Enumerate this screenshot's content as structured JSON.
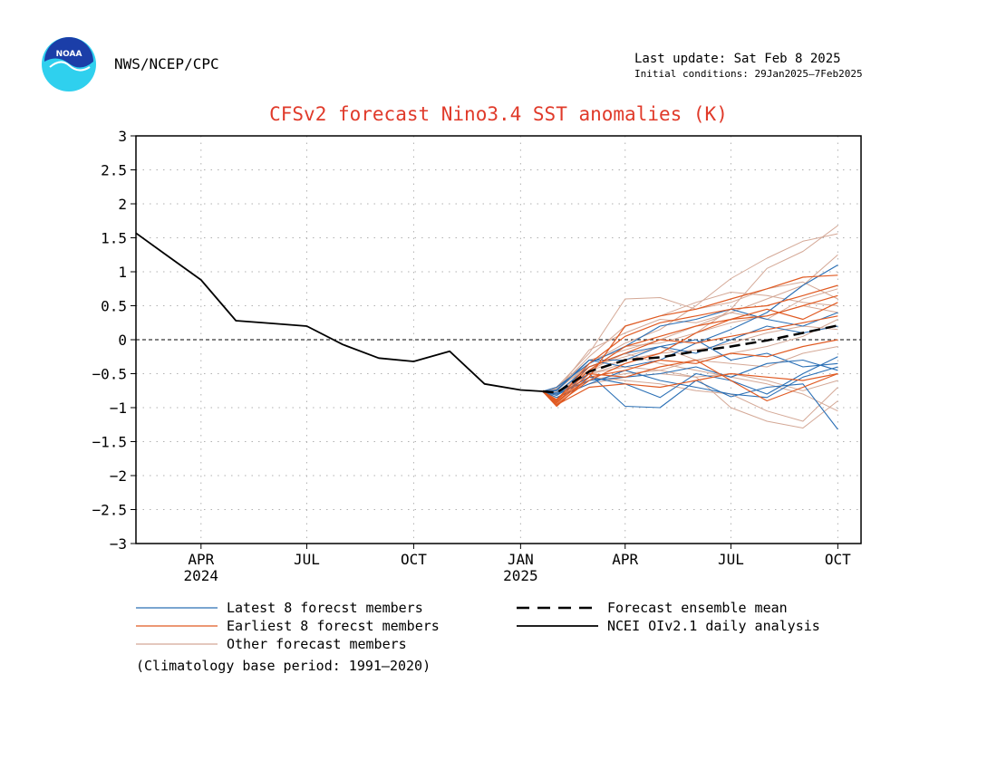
{
  "header": {
    "agency": "NWS/NCEP/CPC",
    "last_update": "Last update: Sat Feb  8 2025",
    "initial_conditions": "Initial conditions: 29Jan2025–7Feb2025",
    "logo_text": "NOAA"
  },
  "footer": {
    "climatology": "(Climatology base period: 1991–2020)"
  },
  "colors": {
    "title": "#e03a2a",
    "latest": "#2a6fb5",
    "earliest": "#e05a22",
    "other": "#d4a896",
    "mean": "#000000",
    "observed": "#000000",
    "logo_blue": "#1b3ea8",
    "logo_cyan": "#2fd0ee"
  },
  "chart_data": {
    "type": "line",
    "title": "CFSv2 forecast Nino3.4 SST anomalies (K)",
    "xlabel": "",
    "ylabel": "",
    "ylim": [
      -3,
      3
    ],
    "yticks": [
      3,
      2.5,
      2,
      1.5,
      1,
      0.5,
      0,
      -0.5,
      -1,
      -1.5,
      -2,
      -2.5,
      -3
    ],
    "ytick_labels": [
      "3",
      "2.5",
      "2",
      "1.5",
      "1",
      "0.5",
      "0",
      "−0.5",
      "−1",
      "−1.5",
      "−2",
      "−2.5",
      "−3"
    ],
    "xlim": [
      "2024-02-05",
      "2025-10-21"
    ],
    "xticks": [
      {
        "date": "2024-04-01",
        "label": "APR",
        "year": "2024"
      },
      {
        "date": "2024-07-01",
        "label": "JUL",
        "year": ""
      },
      {
        "date": "2024-10-01",
        "label": "OCT",
        "year": ""
      },
      {
        "date": "2025-01-01",
        "label": "JAN",
        "year": "2025"
      },
      {
        "date": "2025-04-01",
        "label": "APR",
        "year": ""
      },
      {
        "date": "2025-07-01",
        "label": "JUL",
        "year": ""
      },
      {
        "date": "2025-10-01",
        "label": "OCT",
        "year": ""
      }
    ],
    "grid": true,
    "zero_line": true,
    "legend": [
      {
        "label": "Latest 8 forecst members",
        "style": "latest"
      },
      {
        "label": "Earliest 8 forecst members",
        "style": "earliest"
      },
      {
        "label": "Other forecast members",
        "style": "other"
      },
      {
        "label": "Forecast ensemble mean",
        "style": "mean"
      },
      {
        "label": "NCEI OIv2.1 daily analysis",
        "style": "observed"
      }
    ],
    "forecast_dates": [
      "2025-01-20",
      "2025-02-01",
      "2025-03-01",
      "2025-04-01",
      "2025-05-01",
      "2025-06-01",
      "2025-07-01",
      "2025-08-01",
      "2025-09-01",
      "2025-10-01"
    ],
    "series": [
      {
        "name": "NCEI OIv2.1 daily analysis",
        "style": "observed",
        "x": [
          "2024-02-05",
          "2024-03-01",
          "2024-04-01",
          "2024-05-01",
          "2024-06-01",
          "2024-07-01",
          "2024-08-01",
          "2024-09-01",
          "2024-10-01",
          "2024-11-01",
          "2024-12-01",
          "2025-01-01",
          "2025-01-20"
        ],
        "y": [
          1.57,
          1.26,
          0.88,
          0.28,
          0.24,
          0.2,
          -0.07,
          -0.27,
          -0.32,
          -0.17,
          -0.65,
          -0.74,
          -0.76
        ]
      },
      {
        "name": "Forecast ensemble mean",
        "style": "mean",
        "y": [
          -0.76,
          -0.78,
          -0.47,
          -0.3,
          -0.26,
          -0.17,
          -0.1,
          -0.01,
          0.1,
          0.21
        ]
      },
      {
        "style": "other",
        "y": [
          -0.76,
          -0.7,
          -0.2,
          0.6,
          0.62,
          0.45,
          0.55,
          0.75,
          0.85,
          0.6
        ]
      },
      {
        "style": "other",
        "y": [
          -0.76,
          -0.75,
          -0.35,
          -0.05,
          0.15,
          0.5,
          0.9,
          1.2,
          1.45,
          1.56
        ]
      },
      {
        "style": "other",
        "y": [
          -0.76,
          -0.8,
          -0.5,
          -0.35,
          -0.2,
          0.1,
          0.45,
          1.05,
          1.3,
          1.68
        ]
      },
      {
        "style": "other",
        "y": [
          -0.76,
          -0.8,
          -0.55,
          -0.6,
          -0.65,
          -0.75,
          -0.8,
          -1.05,
          -1.2,
          -0.7
        ]
      },
      {
        "style": "other",
        "y": [
          -0.76,
          -0.85,
          -0.6,
          -0.5,
          -0.45,
          -0.55,
          -1.0,
          -1.2,
          -1.3,
          -0.9
        ]
      },
      {
        "style": "other",
        "y": [
          -0.76,
          -0.7,
          -0.3,
          -0.15,
          0.0,
          0.2,
          0.4,
          0.6,
          0.8,
          1.25
        ]
      },
      {
        "style": "other",
        "y": [
          -0.76,
          -0.72,
          -0.4,
          -0.25,
          -0.1,
          -0.3,
          -0.2,
          -0.1,
          0.05,
          0.3
        ]
      },
      {
        "style": "other",
        "y": [
          -0.76,
          -0.8,
          -0.45,
          -0.2,
          -0.35,
          -0.45,
          -0.55,
          -0.65,
          -0.8,
          -1.05
        ]
      },
      {
        "style": "other",
        "y": [
          -0.76,
          -0.75,
          -0.15,
          0.1,
          0.3,
          0.25,
          0.4,
          0.3,
          0.6,
          0.75
        ]
      },
      {
        "style": "other",
        "y": [
          -0.76,
          -0.78,
          -0.5,
          -0.4,
          -0.45,
          -0.3,
          -0.35,
          -0.4,
          -0.2,
          -0.1
        ]
      },
      {
        "style": "other",
        "y": [
          -0.76,
          -0.82,
          -0.35,
          -0.1,
          -0.05,
          0.1,
          0.25,
          0.35,
          0.5,
          0.4
        ]
      },
      {
        "style": "other",
        "y": [
          -0.76,
          -0.85,
          -0.65,
          -0.55,
          -0.5,
          -0.55,
          -0.5,
          -0.6,
          -0.75,
          -0.6
        ]
      },
      {
        "style": "other",
        "y": [
          -0.76,
          -0.73,
          -0.25,
          0.2,
          0.35,
          0.55,
          0.7,
          0.65,
          0.55,
          0.5
        ]
      },
      {
        "style": "other",
        "y": [
          -0.76,
          -0.77,
          -0.45,
          -0.3,
          -0.2,
          -0.15,
          -0.05,
          0.1,
          0.2,
          0.15
        ]
      },
      {
        "style": "latest",
        "y": [
          -0.76,
          -0.8,
          -0.5,
          -0.98,
          -1.0,
          -0.6,
          -0.84,
          -0.7,
          -0.65,
          -1.32
        ]
      },
      {
        "style": "latest",
        "y": [
          -0.76,
          -0.75,
          -0.3,
          -0.4,
          -0.3,
          -0.05,
          0.15,
          0.4,
          0.8,
          1.1
        ]
      },
      {
        "style": "latest",
        "y": [
          -0.76,
          -0.78,
          -0.4,
          -0.2,
          -0.1,
          0.0,
          -0.3,
          -0.2,
          -0.4,
          -0.35
        ]
      },
      {
        "style": "latest",
        "y": [
          -0.76,
          -0.82,
          -0.55,
          -0.65,
          -0.85,
          -0.5,
          -0.6,
          -0.8,
          -0.5,
          -0.25
        ]
      },
      {
        "style": "latest",
        "y": [
          -0.76,
          -0.7,
          -0.35,
          -0.1,
          0.2,
          0.3,
          0.45,
          0.3,
          0.2,
          0.4
        ]
      },
      {
        "style": "latest",
        "y": [
          -0.76,
          -0.8,
          -0.6,
          -0.55,
          -0.5,
          -0.4,
          -0.55,
          -0.35,
          -0.3,
          -0.45
        ]
      },
      {
        "style": "latest",
        "y": [
          -0.76,
          -0.74,
          -0.3,
          -0.3,
          -0.1,
          -0.2,
          0.0,
          0.2,
          0.1,
          0.2
        ]
      },
      {
        "style": "latest",
        "y": [
          -0.76,
          -0.85,
          -0.65,
          -0.45,
          -0.6,
          -0.7,
          -0.8,
          -0.85,
          -0.55,
          -0.4
        ]
      },
      {
        "style": "earliest",
        "y": [
          -0.76,
          -0.98,
          -0.55,
          0.2,
          0.35,
          0.45,
          0.6,
          0.75,
          0.92,
          0.95
        ]
      },
      {
        "style": "earliest",
        "y": [
          -0.76,
          -0.95,
          -0.6,
          -0.35,
          -0.2,
          0.1,
          0.3,
          0.35,
          0.5,
          0.65
        ]
      },
      {
        "style": "earliest",
        "y": [
          -0.76,
          -0.92,
          -0.5,
          -0.55,
          -0.4,
          -0.3,
          -0.6,
          -0.9,
          -0.7,
          -0.5
        ]
      },
      {
        "style": "earliest",
        "y": [
          -0.76,
          -0.9,
          -0.45,
          -0.1,
          0.05,
          0.2,
          0.3,
          0.45,
          0.3,
          0.55
        ]
      },
      {
        "style": "earliest",
        "y": [
          -0.76,
          -0.96,
          -0.7,
          -0.65,
          -0.7,
          -0.6,
          -0.5,
          -0.55,
          -0.6,
          -0.5
        ]
      },
      {
        "style": "earliest",
        "y": [
          -0.76,
          -0.88,
          -0.4,
          -0.2,
          0.0,
          -0.05,
          0.05,
          0.15,
          0.25,
          0.35
        ]
      },
      {
        "style": "earliest",
        "y": [
          -0.76,
          -0.93,
          -0.55,
          -0.45,
          -0.3,
          -0.35,
          -0.2,
          -0.25,
          -0.1,
          0.0
        ]
      },
      {
        "style": "earliest",
        "y": [
          -0.76,
          -0.9,
          -0.35,
          0.05,
          0.25,
          0.35,
          0.45,
          0.5,
          0.65,
          0.8
        ]
      }
    ]
  }
}
